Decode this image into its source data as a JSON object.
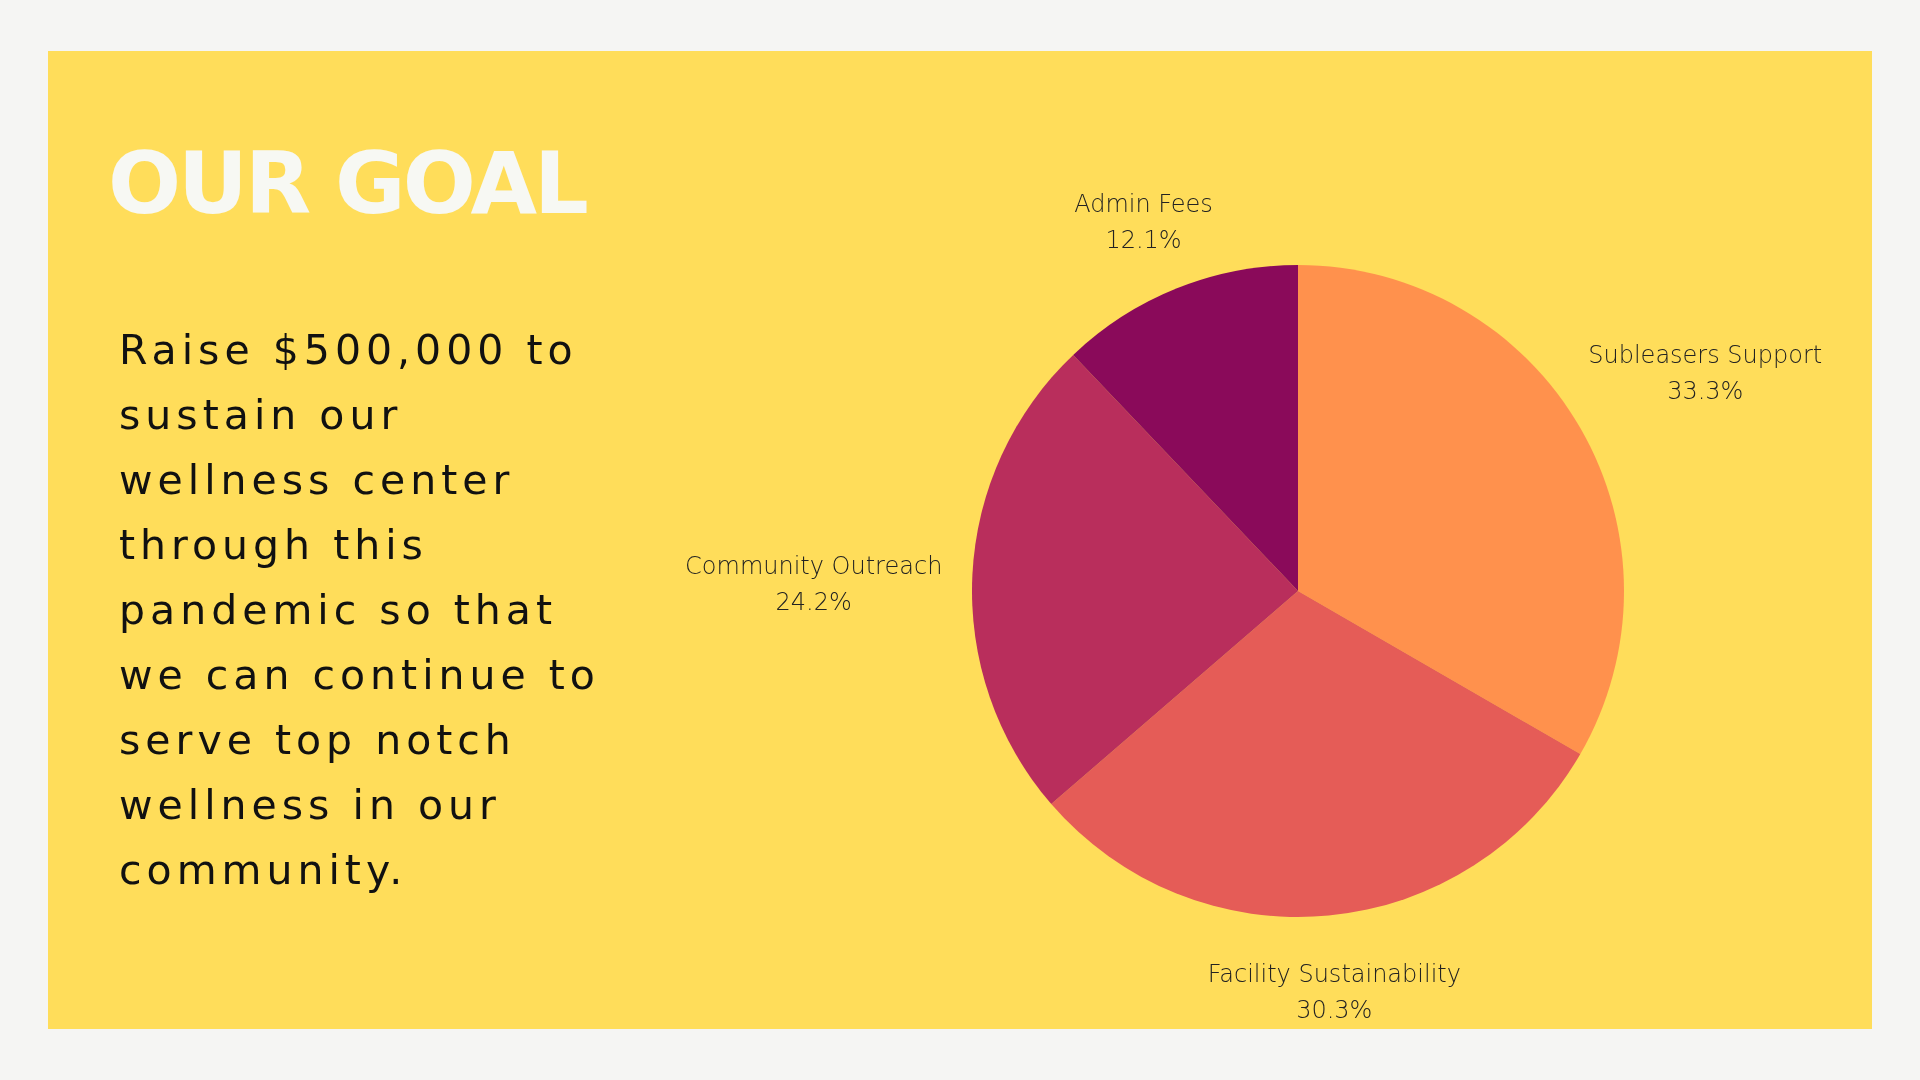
{
  "chart_data": {
    "type": "pie",
    "title": "OUR GOAL",
    "subtitle": "Raise $500,000 to sustain our wellness center through this pandemic so that we can continue to serve top notch wellness in our community.",
    "categories": [
      "Subleasers Support",
      "Facility Sustainability",
      "Community Outreach",
      "Admin Fees"
    ],
    "values": [
      33.3,
      30.3,
      24.2,
      12.1
    ],
    "value_labels": [
      "33.3%",
      "30.3%",
      "24.2%",
      "12.1%"
    ],
    "colors": [
      "#ff914d",
      "#e55c57",
      "#b92e5c",
      "#8a0a5a"
    ]
  }
}
